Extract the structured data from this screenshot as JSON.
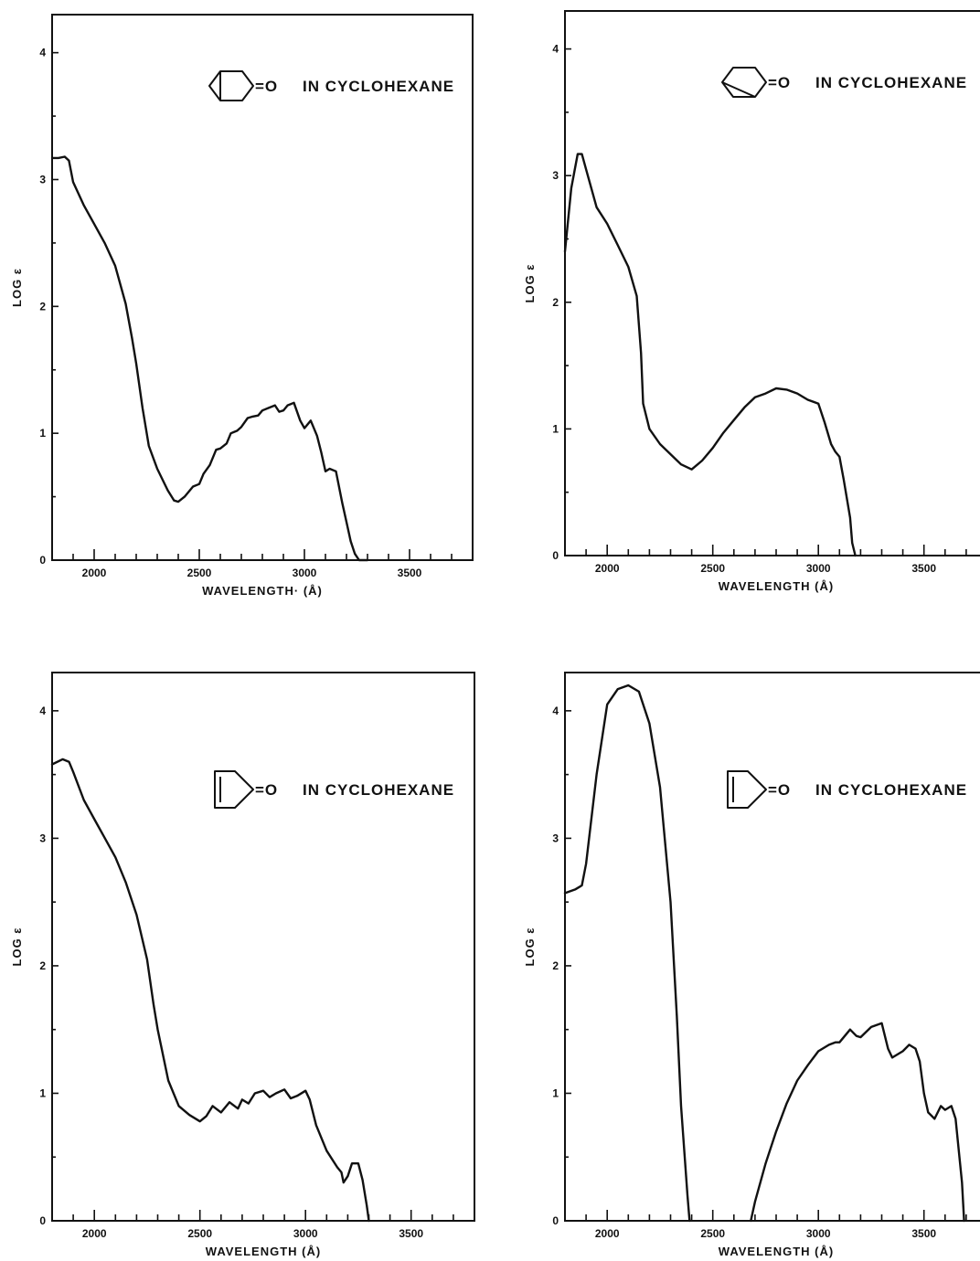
{
  "chart_data": [
    {
      "type": "line",
      "xlabel": "WAVELENGTH· (Å)",
      "ylabel": "LOG ε",
      "xlim": [
        1800,
        3800
      ],
      "ylim": [
        0,
        4.3
      ],
      "x_ticks": [
        2000,
        2500,
        3000,
        3500
      ],
      "x_tick_labels": [
        "2000",
        "2500",
        "3000",
        "3500"
      ],
      "y_ticks": [
        0,
        1,
        2,
        3,
        4
      ],
      "y_tick_labels": [
        "0",
        "1",
        "2",
        "3",
        "4"
      ],
      "annotation": {
        "formula_suffix": "=O",
        "solvent": "IN CYCLOHEXANE",
        "structure_icon": "bicyclo-hexanone-icon"
      },
      "grid": false,
      "series": [
        {
          "x": [
            1800,
            1830,
            1860,
            1880,
            1900,
            1950,
            2000,
            2050,
            2100,
            2150,
            2180,
            2200,
            2230,
            2260,
            2300,
            2350,
            2380,
            2400,
            2430,
            2470,
            2500,
            2520,
            2550,
            2580,
            2600,
            2630,
            2650,
            2680,
            2700,
            2730,
            2750,
            2780,
            2800,
            2830,
            2860,
            2880,
            2900,
            2920,
            2950,
            2980,
            3000,
            3030,
            3060,
            3080,
            3100,
            3120,
            3150,
            3180,
            3200,
            3220,
            3240,
            3260,
            3280,
            3300
          ],
          "y": [
            3.17,
            3.17,
            3.18,
            3.15,
            2.98,
            2.8,
            2.65,
            2.5,
            2.32,
            2.02,
            1.75,
            1.55,
            1.2,
            0.9,
            0.72,
            0.55,
            0.47,
            0.46,
            0.5,
            0.58,
            0.6,
            0.68,
            0.75,
            0.87,
            0.88,
            0.92,
            1.0,
            1.02,
            1.05,
            1.12,
            1.13,
            1.14,
            1.18,
            1.2,
            1.22,
            1.17,
            1.18,
            1.22,
            1.24,
            1.1,
            1.04,
            1.1,
            0.98,
            0.85,
            0.7,
            0.72,
            0.7,
            0.45,
            0.3,
            0.15,
            0.05,
            0.0,
            0.0,
            0.0
          ]
        }
      ]
    },
    {
      "type": "line",
      "xlabel": "WAVELENGTH (Å)",
      "ylabel": "LOG ε",
      "xlim": [
        1800,
        3800
      ],
      "ylim": [
        0,
        4.3
      ],
      "x_ticks": [
        2000,
        2500,
        3000,
        3500
      ],
      "x_tick_labels": [
        "2000",
        "2500",
        "3000",
        "3500"
      ],
      "y_ticks": [
        0,
        1,
        2,
        3,
        4
      ],
      "y_tick_labels": [
        "0",
        "1",
        "2",
        "3",
        "4"
      ],
      "annotation": {
        "formula_suffix": "=O",
        "solvent": "IN CYCLOHEXANE",
        "structure_icon": "norbornanone-icon"
      },
      "grid": false,
      "series": [
        {
          "x": [
            1800,
            1830,
            1860,
            1880,
            1900,
            1950,
            2000,
            2050,
            2100,
            2140,
            2160,
            2170,
            2200,
            2250,
            2300,
            2350,
            2400,
            2450,
            2500,
            2550,
            2600,
            2650,
            2700,
            2750,
            2800,
            2850,
            2900,
            2950,
            3000,
            3030,
            3060,
            3080,
            3100,
            3120,
            3150,
            3160,
            3175
          ],
          "y": [
            2.4,
            2.9,
            3.17,
            3.17,
            3.05,
            2.75,
            2.62,
            2.45,
            2.28,
            2.05,
            1.6,
            1.2,
            1.0,
            0.88,
            0.8,
            0.72,
            0.68,
            0.75,
            0.85,
            0.97,
            1.07,
            1.17,
            1.25,
            1.28,
            1.32,
            1.31,
            1.28,
            1.23,
            1.2,
            1.05,
            0.88,
            0.82,
            0.78,
            0.6,
            0.3,
            0.1,
            0.0
          ]
        }
      ]
    },
    {
      "type": "line",
      "xlabel": "WAVELENGTH (Å)",
      "ylabel": "LOG ε",
      "xlim": [
        1800,
        3800
      ],
      "ylim": [
        0,
        4.3
      ],
      "x_ticks": [
        2000,
        2500,
        3000,
        3500
      ],
      "x_tick_labels": [
        "2000",
        "2500",
        "3000",
        "3500"
      ],
      "y_ticks": [
        0,
        1,
        2,
        3,
        4
      ],
      "y_tick_labels": [
        "0",
        "1",
        "2",
        "3",
        "4"
      ],
      "annotation": {
        "formula_suffix": "=O",
        "solvent": "IN CYCLOHEXANE",
        "structure_icon": "cyclopentenone-icon"
      },
      "grid": false,
      "series": [
        {
          "x": [
            1800,
            1850,
            1880,
            1900,
            1950,
            2000,
            2050,
            2100,
            2150,
            2200,
            2250,
            2280,
            2300,
            2350,
            2400,
            2450,
            2500,
            2530,
            2560,
            2600,
            2640,
            2680,
            2700,
            2730,
            2760,
            2800,
            2830,
            2860,
            2900,
            2930,
            2960,
            3000,
            3020,
            3050,
            3100,
            3150,
            3170,
            3180,
            3200,
            3220,
            3250,
            3270,
            3290,
            3300
          ],
          "y": [
            3.58,
            3.62,
            3.6,
            3.52,
            3.3,
            3.15,
            3.0,
            2.85,
            2.65,
            2.4,
            2.05,
            1.7,
            1.5,
            1.1,
            0.9,
            0.83,
            0.78,
            0.82,
            0.9,
            0.85,
            0.93,
            0.88,
            0.95,
            0.92,
            1.0,
            1.02,
            0.97,
            1.0,
            1.03,
            0.96,
            0.98,
            1.02,
            0.95,
            0.75,
            0.55,
            0.42,
            0.38,
            0.3,
            0.35,
            0.45,
            0.45,
            0.32,
            0.12,
            0.0
          ]
        }
      ]
    },
    {
      "type": "line",
      "xlabel": "WAVELENGTH (Å)",
      "ylabel": "LOG ε",
      "xlim": [
        1800,
        3800
      ],
      "ylim": [
        0,
        4.3
      ],
      "x_ticks": [
        2000,
        2500,
        3000,
        3500
      ],
      "x_tick_labels": [
        "2000",
        "2500",
        "3000",
        "3500"
      ],
      "y_ticks": [
        0,
        1,
        2,
        3,
        4
      ],
      "y_tick_labels": [
        "0",
        "1",
        "2",
        "3",
        "4"
      ],
      "annotation": {
        "formula_suffix": "=O",
        "solvent": "IN CYCLOHEXANE",
        "structure_icon": "cyclopentenone-icon"
      },
      "grid": false,
      "series": [
        {
          "x": [
            1800,
            1850,
            1880,
            1900,
            1950,
            2000,
            2050,
            2100,
            2150,
            2200,
            2250,
            2300,
            2330,
            2350,
            2380,
            2390
          ],
          "y": [
            2.57,
            2.6,
            2.63,
            2.8,
            3.5,
            4.05,
            4.17,
            4.2,
            4.15,
            3.9,
            3.4,
            2.5,
            1.6,
            0.9,
            0.2,
            0.0
          ]
        },
        {
          "x": [
            2680,
            2700,
            2750,
            2800,
            2850,
            2900,
            2950,
            3000,
            3050,
            3080,
            3100,
            3150,
            3180,
            3200,
            3250,
            3300,
            3330,
            3350,
            3400,
            3430,
            3460,
            3480,
            3500,
            3520,
            3550,
            3580,
            3600,
            3630,
            3650,
            3680,
            3690
          ],
          "y": [
            0.0,
            0.15,
            0.45,
            0.7,
            0.92,
            1.1,
            1.22,
            1.33,
            1.38,
            1.4,
            1.4,
            1.5,
            1.45,
            1.44,
            1.52,
            1.55,
            1.35,
            1.28,
            1.33,
            1.38,
            1.35,
            1.25,
            1.0,
            0.85,
            0.8,
            0.9,
            0.87,
            0.9,
            0.8,
            0.3,
            0.0
          ]
        }
      ]
    }
  ]
}
